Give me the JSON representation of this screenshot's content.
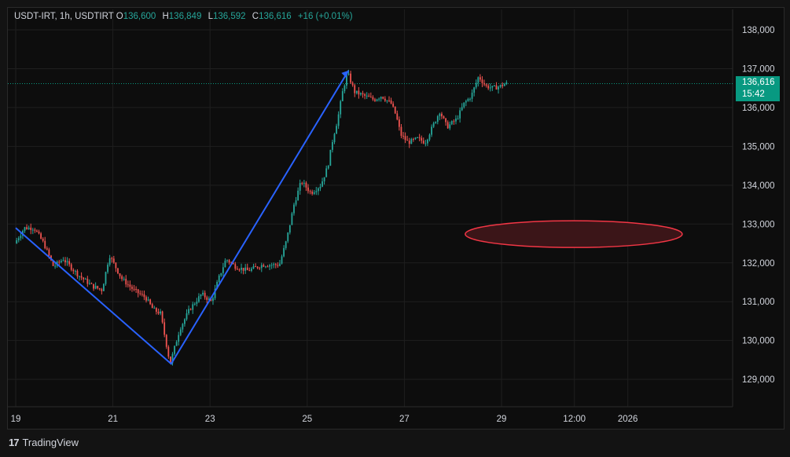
{
  "legend": {
    "symbol": "USDT-IRT, 1h, USDTIRT",
    "open_key": "O",
    "open": "136,600",
    "high_key": "H",
    "high": "136,849",
    "low_key": "L",
    "low": "136,592",
    "close_key": "C",
    "close": "136,616",
    "change": "+16 (+0.01%)"
  },
  "price_tag": {
    "price": "136,616",
    "countdown": "15:42"
  },
  "footer": {
    "logo": "17",
    "brand": "TradingView"
  },
  "colors": {
    "up": "#26a69a",
    "down": "#ef5350",
    "trendline": "#2962ff",
    "ellipse_stroke": "#f23645",
    "ellipse_fill": "#3b1518",
    "last_price": "#089981"
  },
  "chart_data": {
    "type": "candlestick",
    "title": "USDT-IRT, 1h, USDTIRT",
    "y_ticks": [
      "138,000",
      "137,000",
      "136,000",
      "135,000",
      "134,000",
      "133,000",
      "132,000",
      "131,000",
      "130,000",
      "129,000"
    ],
    "x_ticks": [
      "19",
      "21",
      "23",
      "25",
      "27",
      "29",
      "12:00",
      "2026"
    ],
    "ylim": [
      128500,
      138500
    ],
    "last_price": 136616,
    "grid": true,
    "price_path": [
      [
        19.0,
        132500
      ],
      [
        19.2,
        132900
      ],
      [
        19.4,
        132900
      ],
      [
        19.6,
        132500
      ],
      [
        19.8,
        131900
      ],
      [
        20.0,
        132100
      ],
      [
        20.3,
        131700
      ],
      [
        20.6,
        131400
      ],
      [
        20.8,
        131300
      ],
      [
        20.95,
        132200
      ],
      [
        21.2,
        131600
      ],
      [
        21.45,
        131300
      ],
      [
        21.7,
        131100
      ],
      [
        21.85,
        130800
      ],
      [
        22.0,
        130700
      ],
      [
        22.2,
        129400
      ],
      [
        22.4,
        130300
      ],
      [
        22.6,
        130800
      ],
      [
        22.85,
        131200
      ],
      [
        23.05,
        131000
      ],
      [
        23.2,
        131600
      ],
      [
        23.35,
        132100
      ],
      [
        23.55,
        131900
      ],
      [
        23.8,
        131800
      ],
      [
        24.1,
        131950
      ],
      [
        24.45,
        131950
      ],
      [
        24.6,
        132600
      ],
      [
        24.75,
        133500
      ],
      [
        24.9,
        134100
      ],
      [
        25.1,
        133800
      ],
      [
        25.3,
        134000
      ],
      [
        25.45,
        134500
      ],
      [
        25.55,
        135200
      ],
      [
        25.65,
        135700
      ],
      [
        25.75,
        136400
      ],
      [
        25.85,
        136900
      ],
      [
        26.0,
        136400
      ],
      [
        26.2,
        136300
      ],
      [
        26.4,
        136200
      ],
      [
        26.55,
        136300
      ],
      [
        26.75,
        136100
      ],
      [
        26.85,
        135800
      ],
      [
        26.95,
        135300
      ],
      [
        27.1,
        135100
      ],
      [
        27.3,
        135200
      ],
      [
        27.45,
        135100
      ],
      [
        27.6,
        135500
      ],
      [
        27.75,
        135900
      ],
      [
        27.9,
        135500
      ],
      [
        28.1,
        135700
      ],
      [
        28.25,
        136100
      ],
      [
        28.4,
        136300
      ],
      [
        28.55,
        136800
      ],
      [
        28.7,
        136550
      ],
      [
        28.85,
        136500
      ],
      [
        29.0,
        136550
      ],
      [
        29.1,
        136616
      ]
    ],
    "annotations": {
      "trendline": [
        [
          19.0,
          132900
        ],
        [
          22.2,
          129400
        ],
        [
          25.85,
          136950
        ]
      ],
      "ellipse_center": [
        30.6,
        132750
      ]
    }
  }
}
